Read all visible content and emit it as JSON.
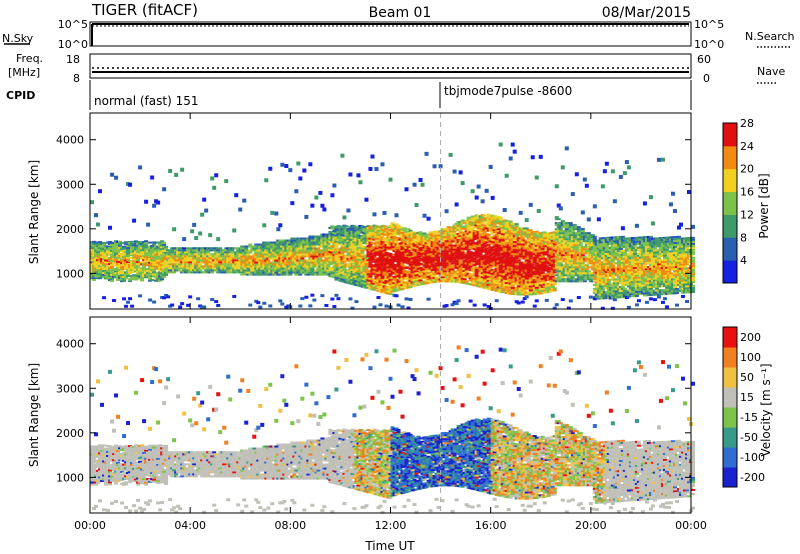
{
  "header": {
    "radar": "TIGER (fitACF)",
    "beam": "Beam 01",
    "date": "08/Mar/2015"
  },
  "top_panels": {
    "nsky": {
      "label": "N.Sky",
      "ticks": [
        "10^5",
        "10^0"
      ]
    },
    "nsearch": {
      "label": "N.Search",
      "ticks": [
        "10^5",
        "10^0"
      ]
    },
    "freq": {
      "label_line1": "Freq.",
      "label_line2": "[MHz]",
      "ticks": [
        "18",
        "8"
      ]
    },
    "nave": {
      "label": "Nave",
      "ticks": [
        "60",
        "0"
      ]
    },
    "cpid": {
      "label": "CPID",
      "segments": [
        "normal (fast) 151",
        "tbjmode7pulse -8600"
      ],
      "switch_time": "14:00"
    }
  },
  "chart_data": [
    {
      "type": "heatmap",
      "name": "Power",
      "ylabel": "Slant Range [km]",
      "y_ticks": [
        1000,
        2000,
        3000,
        4000
      ],
      "ylim": [
        200,
        4600
      ],
      "x_ticks": [
        "00:00",
        "04:00",
        "08:00",
        "12:00",
        "16:00",
        "20:00",
        "00:00"
      ],
      "xlim_hours": [
        0,
        24
      ],
      "colorbar": {
        "label": "Power [dB]",
        "ticks": [
          "4",
          "8",
          "12",
          "16",
          "20",
          "24",
          "28"
        ],
        "colors": [
          "#1520e0",
          "#2a5fb0",
          "#3f9a6a",
          "#7cc24a",
          "#f0d020",
          "#f08a10",
          "#e01010"
        ]
      }
    },
    {
      "type": "heatmap",
      "name": "Velocity",
      "ylabel": "Slant Range [km]",
      "y_ticks": [
        1000,
        2000,
        3000,
        4000
      ],
      "ylim": [
        200,
        4600
      ],
      "x_ticks": [
        "00:00",
        "04:00",
        "08:00",
        "12:00",
        "16:00",
        "20:00",
        "00:00"
      ],
      "xlim_hours": [
        0,
        24
      ],
      "xlabel": "Time UT",
      "colorbar": {
        "label": "Velocity [m s⁻¹]",
        "ticks": [
          "200",
          "100",
          "50",
          "15",
          "-15",
          "-50",
          "-100",
          "-200"
        ],
        "colors": [
          "#1a22d0",
          "#2f6ed0",
          "#3a9a8a",
          "#7cc44a",
          "#c0c0b8",
          "#f0c040",
          "#f08020",
          "#e81010"
        ]
      }
    }
  ]
}
